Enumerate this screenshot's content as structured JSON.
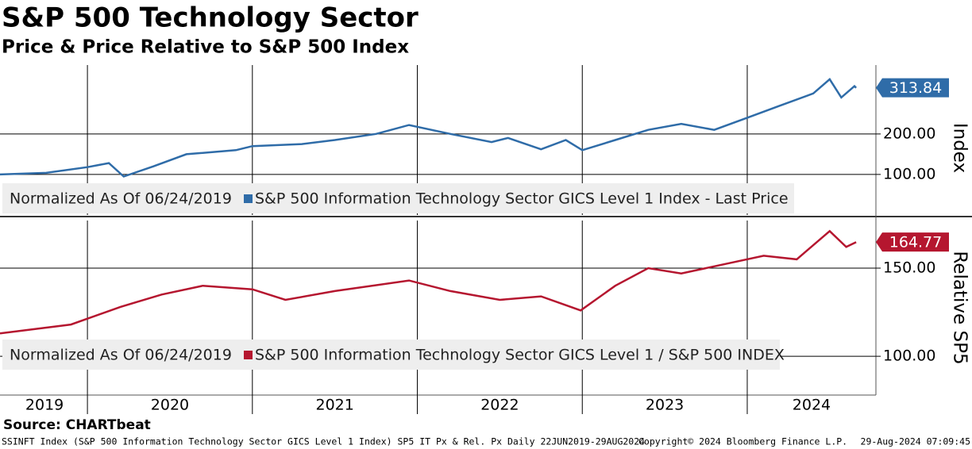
{
  "title": "S&P 500 Technology Sector",
  "subtitle": "Price & Price Relative to S&P 500 Index",
  "source": "Source: CHARTbeat",
  "footer": [
    "SSINFT Index (S&P 500 Information Technology Sector GICS Level 1 Index) SP5 IT Px & Rel. Px  Daily 22JUN2019-29AUG2024",
    "Copyright© 2024 Bloomberg Finance L.P.",
    "29-Aug-2024 07:09:45"
  ],
  "chart_data": [
    {
      "type": "line",
      "y_label": "Index",
      "legend_note": "Normalized As Of 06/24/2019",
      "x": [
        2019.47,
        2019.75,
        2020.0,
        2020.13,
        2020.22,
        2020.4,
        2020.6,
        2020.9,
        2021.0,
        2021.3,
        2021.5,
        2021.75,
        2021.95,
        2022.2,
        2022.45,
        2022.55,
        2022.75,
        2022.9,
        2023.0,
        2023.2,
        2023.4,
        2023.6,
        2023.8,
        2024.0,
        2024.2,
        2024.4,
        2024.5,
        2024.57,
        2024.65,
        2024.66
      ],
      "series": [
        {
          "name": "S&P 500 Information Technology Sector GICS Level 1 Index - Last Price",
          "color": "#2f6ca8",
          "values": [
            100,
            104,
            118,
            128,
            95,
            120,
            150,
            160,
            170,
            175,
            185,
            200,
            222,
            200,
            180,
            190,
            162,
            185,
            160,
            185,
            210,
            225,
            210,
            240,
            270,
            300,
            335,
            290,
            318,
            313.84
          ]
        }
      ],
      "xlim": [
        2019.47,
        2024.78
      ],
      "xticks": [
        2020,
        2021,
        2022,
        2023,
        2024
      ],
      "ylim": [
        0,
        370
      ],
      "yticks": [
        {
          "value": 100,
          "label": "100.00"
        },
        {
          "value": 200,
          "label": "200.00"
        }
      ]
    },
    {
      "type": "line",
      "y_label": "Relative SP5",
      "legend_note": "Normalized As Of 06/24/2019",
      "x": [
        2019.47,
        2019.9,
        2020.2,
        2020.45,
        2020.7,
        2021.0,
        2021.2,
        2021.5,
        2021.95,
        2022.2,
        2022.5,
        2022.75,
        2022.99,
        2023.2,
        2023.4,
        2023.6,
        2023.9,
        2024.1,
        2024.3,
        2024.5,
        2024.6,
        2024.66
      ],
      "series": [
        {
          "name": "S&P 500 Information Technology Sector GICS Level 1 / S&P 500 INDEX",
          "color": "#b5162f",
          "values": [
            113,
            118,
            128,
            135,
            140,
            138,
            132,
            137,
            143,
            137,
            132,
            134,
            126,
            140,
            150,
            147,
            153,
            157,
            155,
            171,
            162,
            164.77
          ]
        }
      ],
      "xlim": [
        2019.47,
        2024.78
      ],
      "xticks": [
        2020,
        2021,
        2022,
        2023,
        2024
      ],
      "xlabels": [
        {
          "value": 2019.74,
          "label": "2019"
        },
        {
          "value": 2020.5,
          "label": "2020"
        },
        {
          "value": 2021.5,
          "label": "2021"
        },
        {
          "value": 2022.5,
          "label": "2022"
        },
        {
          "value": 2023.5,
          "label": "2023"
        },
        {
          "value": 2024.39,
          "label": "2024"
        }
      ],
      "ylim": [
        78,
        177
      ],
      "yticks": [
        {
          "value": 100,
          "label": "100.00"
        },
        {
          "value": 150,
          "label": "150.00"
        }
      ]
    }
  ]
}
